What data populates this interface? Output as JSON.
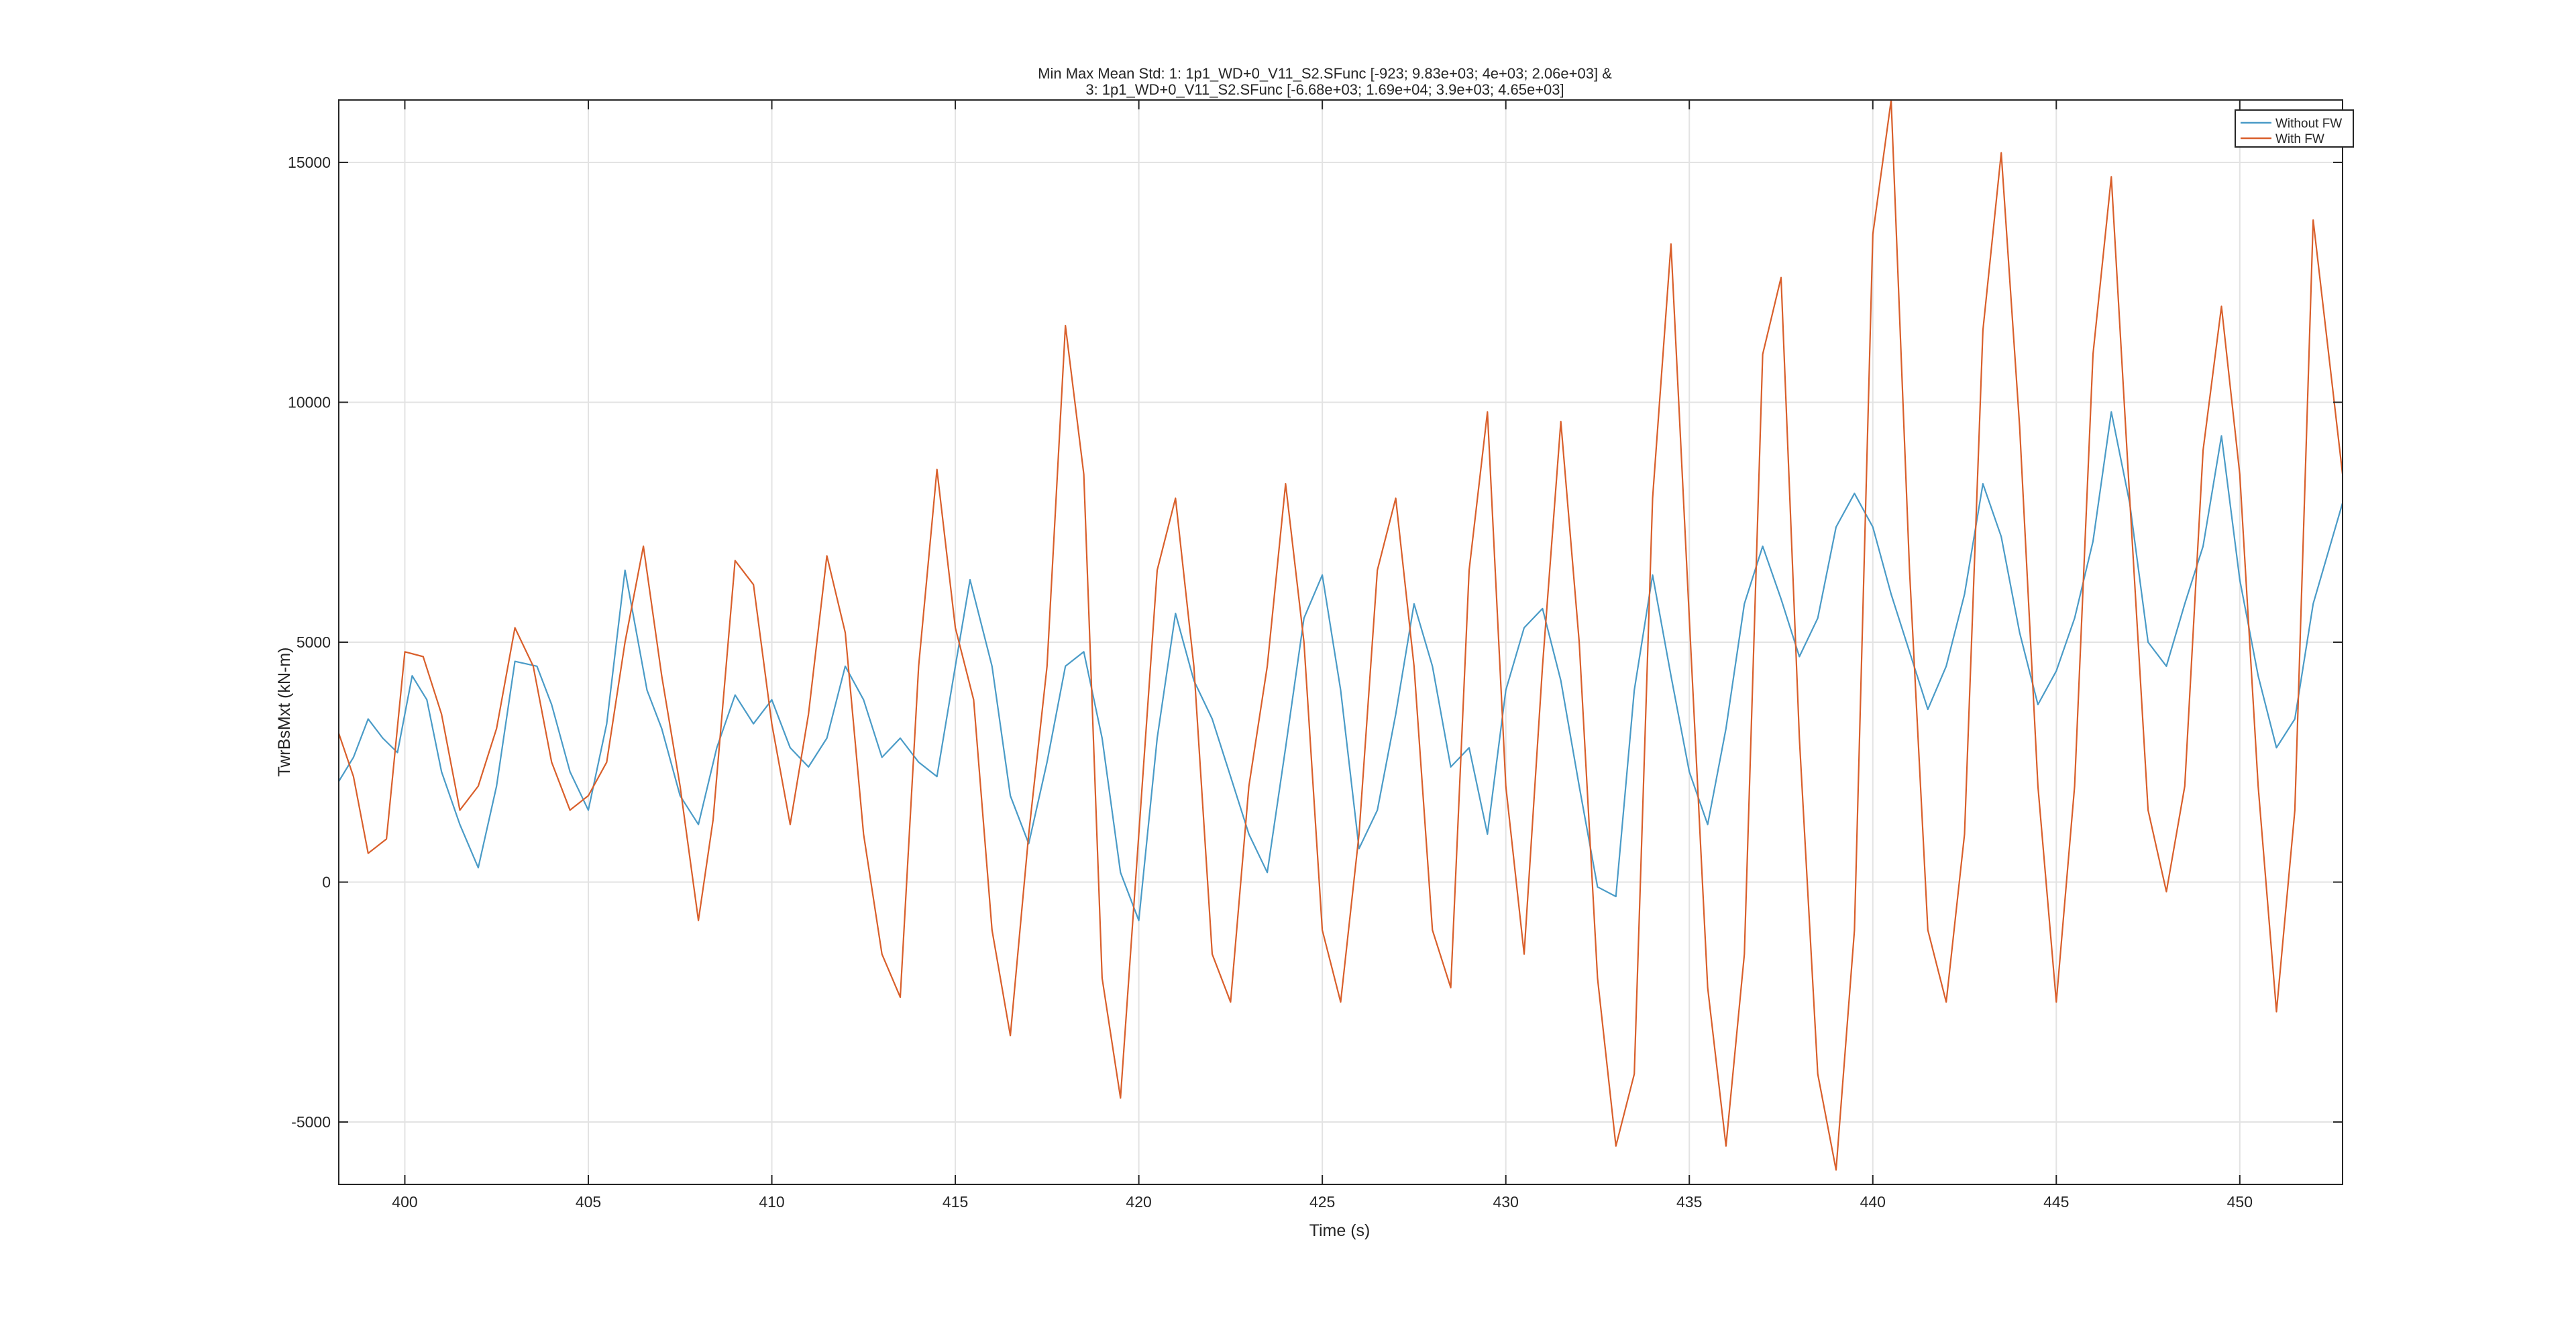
{
  "chart_data": {
    "type": "line",
    "title_lines": [
      "Min Max Mean Std: 1: 1p1_WD+0_V11_S2.SFunc [-923; 9.83e+03; 4e+03; 2.06e+03] &",
      "3: 1p1_WD+0_V11_S2.SFunc [-6.68e+03; 1.69e+04; 3.9e+03; 4.65e+03]"
    ],
    "xlabel": "Time (s)",
    "ylabel": "TwrBsMxt (kN-m)",
    "xlim": [
      398.2,
      452.8
    ],
    "ylim": [
      -6300,
      16300
    ],
    "xticks": [
      400,
      405,
      410,
      415,
      420,
      425,
      430,
      435,
      440,
      445,
      450
    ],
    "xtick_labels": [
      "400",
      "405",
      "410",
      "415",
      "420",
      "425",
      "430",
      "435",
      "440",
      "445",
      "450"
    ],
    "yticks": [
      -5000,
      0,
      5000,
      10000,
      15000
    ],
    "ytick_labels": [
      "-5000",
      "0",
      "5000",
      "10000",
      "15000"
    ],
    "grid": true,
    "legend_position": "top-right",
    "series": [
      {
        "name": "Without FW",
        "color": "#4a9bc7",
        "x": [
          398.2,
          398.6,
          399.0,
          399.4,
          399.8,
          400.2,
          400.6,
          401.0,
          401.5,
          402.0,
          402.5,
          403.0,
          403.6,
          404.0,
          404.5,
          405.0,
          405.5,
          406.0,
          406.6,
          407.0,
          407.5,
          408.0,
          408.5,
          409.0,
          409.5,
          410.0,
          410.5,
          411.0,
          411.5,
          412.0,
          412.5,
          413.0,
          413.5,
          414.0,
          414.5,
          415.0,
          415.4,
          416.0,
          416.5,
          417.0,
          417.5,
          418.0,
          418.5,
          419.0,
          419.5,
          420.0,
          420.5,
          421.0,
          421.5,
          422.0,
          422.5,
          423.0,
          423.5,
          424.0,
          424.5,
          425.0,
          425.5,
          426.0,
          426.5,
          427.0,
          427.5,
          428.0,
          428.5,
          429.0,
          429.5,
          430.0,
          430.5,
          431.0,
          431.5,
          432.0,
          432.5,
          433.0,
          433.5,
          434.0,
          434.5,
          435.0,
          435.5,
          436.0,
          436.5,
          437.0,
          437.5,
          438.0,
          438.5,
          439.0,
          439.5,
          440.0,
          440.5,
          441.0,
          441.5,
          442.0,
          442.5,
          443.0,
          443.5,
          444.0,
          444.5,
          445.0,
          445.5,
          446.0,
          446.5,
          447.0,
          447.5,
          448.0,
          448.5,
          449.0,
          449.5,
          450.0,
          450.5,
          451.0,
          451.5,
          452.0,
          452.8
        ],
        "y": [
          2100,
          2600,
          3400,
          3000,
          2700,
          4300,
          3800,
          2300,
          1200,
          300,
          2000,
          4600,
          4500,
          3700,
          2300,
          1500,
          3300,
          6500,
          4000,
          3200,
          1800,
          1200,
          2800,
          3900,
          3300,
          3800,
          2800,
          2400,
          3000,
          4500,
          3800,
          2600,
          3000,
          2500,
          2200,
          4500,
          6300,
          4500,
          1800,
          800,
          2500,
          4500,
          4800,
          3000,
          200,
          -800,
          3000,
          5600,
          4200,
          3400,
          2200,
          1000,
          200,
          2800,
          5500,
          6400,
          4000,
          700,
          1500,
          3500,
          5800,
          4500,
          2400,
          2800,
          1000,
          4000,
          5300,
          5700,
          4200,
          2000,
          -100,
          -300,
          4000,
          6400,
          4300,
          2300,
          1200,
          3200,
          5800,
          7000,
          5900,
          4700,
          5500,
          7400,
          8100,
          7400,
          6000,
          4800,
          3600,
          4500,
          6000,
          8300,
          7200,
          5200,
          3700,
          4400,
          5500,
          7100,
          9800,
          7900,
          5000,
          4500,
          5800,
          7000,
          9300,
          6300,
          4300,
          2800,
          3400,
          5800,
          7900
        ]
      },
      {
        "name": "With FW",
        "color": "#d95f2b",
        "x": [
          398.2,
          398.6,
          399.0,
          399.5,
          400.0,
          400.5,
          401.0,
          401.5,
          402.0,
          402.5,
          403.0,
          403.5,
          404.0,
          404.5,
          405.0,
          405.5,
          406.0,
          406.5,
          407.0,
          407.5,
          408.0,
          408.4,
          409.0,
          409.5,
          410.0,
          410.5,
          411.0,
          411.5,
          412.0,
          412.5,
          413.0,
          413.5,
          414.0,
          414.5,
          415.0,
          415.5,
          416.0,
          416.5,
          417.0,
          417.5,
          418.0,
          418.5,
          419.0,
          419.5,
          420.0,
          420.5,
          421.0,
          421.5,
          422.0,
          422.5,
          423.0,
          423.5,
          424.0,
          424.5,
          425.0,
          425.5,
          426.0,
          426.5,
          427.0,
          427.5,
          428.0,
          428.5,
          429.0,
          429.5,
          430.0,
          430.5,
          431.0,
          431.5,
          432.0,
          432.5,
          433.0,
          433.5,
          434.0,
          434.5,
          435.0,
          435.5,
          436.0,
          436.5,
          437.0,
          437.5,
          438.0,
          438.5,
          439.0,
          439.5,
          440.0,
          440.5,
          441.0,
          441.5,
          442.0,
          442.5,
          443.0,
          443.5,
          444.0,
          444.5,
          445.0,
          445.5,
          446.0,
          446.5,
          447.0,
          447.5,
          448.0,
          448.5,
          449.0,
          449.5,
          450.0,
          450.5,
          451.0,
          451.5,
          452.0,
          452.8
        ],
        "y": [
          3100,
          2200,
          600,
          900,
          4800,
          4700,
          3500,
          1500,
          2000,
          3200,
          5300,
          4500,
          2500,
          1500,
          1800,
          2500,
          5000,
          7000,
          4300,
          2000,
          -800,
          1300,
          6700,
          6200,
          3300,
          1200,
          3500,
          6800,
          5200,
          1000,
          -1500,
          -2400,
          4500,
          8600,
          5300,
          3800,
          -1000,
          -3200,
          1000,
          4500,
          11600,
          8500,
          -2000,
          -4500,
          1000,
          6500,
          8000,
          4500,
          -1500,
          -2500,
          2000,
          4500,
          8300,
          5000,
          -1000,
          -2500,
          1000,
          6500,
          8000,
          4500,
          -1000,
          -2200,
          6500,
          9800,
          2000,
          -1500,
          4500,
          9600,
          5000,
          -2000,
          -5500,
          -4000,
          8000,
          13300,
          5500,
          -2200,
          -5500,
          -1500,
          11000,
          12600,
          3000,
          -4000,
          -6000,
          -1000,
          13500,
          16300,
          6500,
          -1000,
          -2500,
          1000,
          11500,
          15200,
          9500,
          2000,
          -2500,
          2000,
          11000,
          14700,
          8000,
          1500,
          -200,
          2000,
          9000,
          12000,
          8500,
          2000,
          -2700,
          1500,
          13800,
          8500
        ]
      }
    ]
  }
}
